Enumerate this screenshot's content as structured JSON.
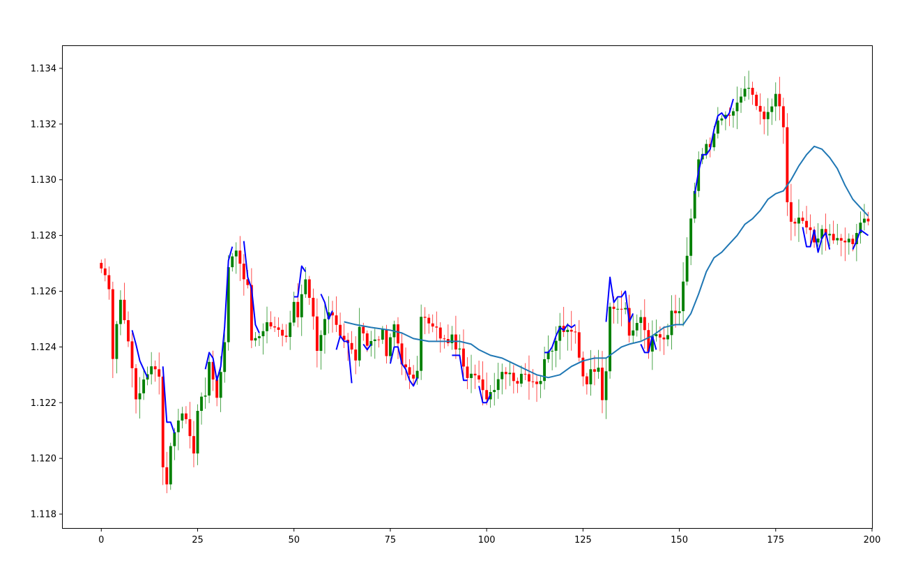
{
  "chart_data": {
    "type": "candlestick",
    "xlim": [
      -10,
      200
    ],
    "ylim": [
      1.1175,
      1.1348
    ],
    "x_ticks": [
      0,
      25,
      50,
      75,
      100,
      125,
      150,
      175,
      200
    ],
    "y_ticks": [
      1.118,
      1.12,
      1.122,
      1.124,
      1.126,
      1.128,
      1.13,
      1.132,
      1.134
    ],
    "x_tick_labels": [
      "0",
      "25",
      "50",
      "75",
      "100",
      "125",
      "150",
      "175",
      "200"
    ],
    "y_tick_labels": [
      "1.118",
      "1.120",
      "1.122",
      "1.124",
      "1.126",
      "1.128",
      "1.130",
      "1.132",
      "1.134"
    ],
    "colors": {
      "up": "#008000",
      "down": "#ff0000",
      "signal": "#0000ff",
      "smooth": "#1f77b4"
    },
    "close_anchors": [
      [
        0,
        1.1267
      ],
      [
        2,
        1.1262
      ],
      [
        3,
        1.1236
      ],
      [
        5,
        1.1258
      ],
      [
        7,
        1.1242
      ],
      [
        9,
        1.1222
      ],
      [
        11,
        1.1227
      ],
      [
        13,
        1.1234
      ],
      [
        15,
        1.123
      ],
      [
        16,
        1.1198
      ],
      [
        17,
        1.119
      ],
      [
        18,
        1.1205
      ],
      [
        20,
        1.1215
      ],
      [
        22,
        1.1215
      ],
      [
        23,
        1.1207
      ],
      [
        24,
        1.1202
      ],
      [
        25,
        1.1218
      ],
      [
        26,
        1.1222
      ],
      [
        27,
        1.1223
      ],
      [
        28,
        1.1234
      ],
      [
        29,
        1.1228
      ],
      [
        30,
        1.1223
      ],
      [
        31,
        1.1232
      ],
      [
        32,
        1.1242
      ],
      [
        33,
        1.127
      ],
      [
        34,
        1.1271
      ],
      [
        35,
        1.1275
      ],
      [
        37,
        1.1264
      ],
      [
        38,
        1.1261
      ],
      [
        39,
        1.1243
      ],
      [
        41,
        1.1244
      ],
      [
        43,
        1.1248
      ],
      [
        46,
        1.1247
      ],
      [
        48,
        1.1243
      ],
      [
        50,
        1.1257
      ],
      [
        51,
        1.125
      ],
      [
        52,
        1.1258
      ],
      [
        53,
        1.1263
      ],
      [
        55,
        1.125
      ],
      [
        56,
        1.1238
      ],
      [
        58,
        1.125
      ],
      [
        60,
        1.1252
      ],
      [
        62,
        1.1245
      ],
      [
        64,
        1.1241
      ],
      [
        66,
        1.1236
      ],
      [
        67,
        1.1246
      ],
      [
        69,
        1.1241
      ],
      [
        71,
        1.1243
      ],
      [
        73,
        1.1245
      ],
      [
        74,
        1.1237
      ],
      [
        76,
        1.1248
      ],
      [
        78,
        1.1235
      ],
      [
        80,
        1.1229
      ],
      [
        82,
        1.123
      ],
      [
        83,
        1.1252
      ],
      [
        85,
        1.1248
      ],
      [
        87,
        1.1246
      ],
      [
        89,
        1.1242
      ],
      [
        91,
        1.1243
      ],
      [
        93,
        1.1238
      ],
      [
        95,
        1.1228
      ],
      [
        97,
        1.1231
      ],
      [
        99,
        1.1226
      ],
      [
        100,
        1.1222
      ],
      [
        102,
        1.1226
      ],
      [
        104,
        1.1232
      ],
      [
        106,
        1.123
      ],
      [
        108,
        1.1228
      ],
      [
        110,
        1.123
      ],
      [
        112,
        1.1228
      ],
      [
        114,
        1.1228
      ],
      [
        115,
        1.1236
      ],
      [
        117,
        1.1238
      ],
      [
        119,
        1.1247
      ],
      [
        121,
        1.1245
      ],
      [
        123,
        1.1245
      ],
      [
        124,
        1.1237
      ],
      [
        125,
        1.123
      ],
      [
        126,
        1.1228
      ],
      [
        127,
        1.1231
      ],
      [
        129,
        1.1234
      ],
      [
        130,
        1.1222
      ],
      [
        131,
        1.1232
      ],
      [
        132,
        1.1253
      ],
      [
        134,
        1.1254
      ],
      [
        136,
        1.1254
      ],
      [
        137,
        1.1243
      ],
      [
        138,
        1.1246
      ],
      [
        140,
        1.1252
      ],
      [
        142,
        1.1238
      ],
      [
        143,
        1.1244
      ],
      [
        145,
        1.1243
      ],
      [
        147,
        1.1243
      ],
      [
        148,
        1.1252
      ],
      [
        150,
        1.1253
      ],
      [
        151,
        1.1263
      ],
      [
        152,
        1.1272
      ],
      [
        153,
        1.1285
      ],
      [
        154,
        1.1296
      ],
      [
        155,
        1.1306
      ],
      [
        156,
        1.1309
      ],
      [
        157,
        1.1312
      ],
      [
        158,
        1.1312
      ],
      [
        159,
        1.1318
      ],
      [
        160,
        1.132
      ],
      [
        161,
        1.1322
      ],
      [
        162,
        1.1323
      ],
      [
        164,
        1.1324
      ],
      [
        165,
        1.1327
      ],
      [
        166,
        1.133
      ],
      [
        167,
        1.1333
      ],
      [
        168,
        1.1332
      ],
      [
        170,
        1.1328
      ],
      [
        171,
        1.1325
      ],
      [
        172,
        1.1322
      ],
      [
        173,
        1.1323
      ],
      [
        174,
        1.1326
      ],
      [
        175,
        1.1332
      ],
      [
        176,
        1.1326
      ],
      [
        177,
        1.132
      ],
      [
        178,
        1.1293
      ],
      [
        179,
        1.1285
      ],
      [
        181,
        1.1285
      ],
      [
        183,
        1.1283
      ],
      [
        185,
        1.1278
      ],
      [
        187,
        1.1282
      ],
      [
        189,
        1.128
      ],
      [
        191,
        1.1278
      ],
      [
        193,
        1.1278
      ],
      [
        195,
        1.1278
      ],
      [
        197,
        1.1285
      ],
      [
        199,
        1.1285
      ]
    ],
    "smooth_line": [
      [
        63,
        1.1249
      ],
      [
        66,
        1.1248
      ],
      [
        70,
        1.1247
      ],
      [
        75,
        1.1246
      ],
      [
        78,
        1.1245
      ],
      [
        81,
        1.1243
      ],
      [
        85,
        1.1242
      ],
      [
        90,
        1.1242
      ],
      [
        93,
        1.1242
      ],
      [
        96,
        1.1241
      ],
      [
        98,
        1.1239
      ],
      [
        101,
        1.1237
      ],
      [
        104,
        1.1236
      ],
      [
        107,
        1.1234
      ],
      [
        110,
        1.1232
      ],
      [
        113,
        1.123
      ],
      [
        116,
        1.1229
      ],
      [
        119,
        1.123
      ],
      [
        122,
        1.1233
      ],
      [
        125,
        1.1235
      ],
      [
        128,
        1.1236
      ],
      [
        131,
        1.1236
      ],
      [
        133,
        1.1238
      ],
      [
        135,
        1.124
      ],
      [
        137,
        1.1241
      ],
      [
        140,
        1.1242
      ],
      [
        143,
        1.1244
      ],
      [
        146,
        1.1247
      ],
      [
        149,
        1.1248
      ],
      [
        151,
        1.1248
      ],
      [
        153,
        1.1252
      ],
      [
        155,
        1.1259
      ],
      [
        157,
        1.1267
      ],
      [
        159,
        1.1272
      ],
      [
        161,
        1.1274
      ],
      [
        163,
        1.1277
      ],
      [
        165,
        1.128
      ],
      [
        167,
        1.1284
      ],
      [
        169,
        1.1286
      ],
      [
        171,
        1.1289
      ],
      [
        173,
        1.1293
      ],
      [
        175,
        1.1295
      ],
      [
        177,
        1.1296
      ],
      [
        179,
        1.13
      ],
      [
        181,
        1.1305
      ],
      [
        183,
        1.1309
      ],
      [
        185,
        1.1312
      ],
      [
        187,
        1.1311
      ],
      [
        189,
        1.1308
      ],
      [
        191,
        1.1304
      ],
      [
        193,
        1.1298
      ],
      [
        195,
        1.1293
      ],
      [
        197,
        1.129
      ],
      [
        199,
        1.1287
      ]
    ],
    "signal_segments": [
      [
        [
          8,
          1.1246
        ],
        [
          9,
          1.1241
        ],
        [
          10,
          1.1235
        ],
        [
          11,
          1.1232
        ],
        [
          12,
          1.1229
        ]
      ],
      [
        [
          16,
          1.1233
        ],
        [
          17,
          1.1213
        ],
        [
          18,
          1.1213
        ],
        [
          19,
          1.1209
        ]
      ],
      [
        [
          27,
          1.1232
        ],
        [
          28,
          1.1238
        ],
        [
          29,
          1.1236
        ],
        [
          30,
          1.1228
        ],
        [
          31,
          1.1233
        ],
        [
          32,
          1.1247
        ],
        [
          33,
          1.1271
        ],
        [
          34,
          1.1276
        ]
      ],
      [
        [
          37,
          1.1278
        ],
        [
          38,
          1.1265
        ],
        [
          39,
          1.1261
        ],
        [
          40,
          1.1248
        ],
        [
          41,
          1.1245
        ]
      ],
      [
        [
          50,
          1.1258
        ],
        [
          51,
          1.1258
        ],
        [
          52,
          1.1269
        ],
        [
          53,
          1.1267
        ]
      ],
      [
        [
          57,
          1.1259
        ],
        [
          58,
          1.1256
        ],
        [
          59,
          1.125
        ],
        [
          60,
          1.1253
        ]
      ],
      [
        [
          61,
          1.1239
        ],
        [
          62,
          1.1244
        ],
        [
          63,
          1.1242
        ],
        [
          64,
          1.1242
        ],
        [
          65,
          1.1227
        ]
      ],
      [
        [
          68,
          1.1241
        ],
        [
          69,
          1.1239
        ],
        [
          70,
          1.1241
        ]
      ],
      [
        [
          75,
          1.1234
        ],
        [
          76,
          1.124
        ],
        [
          77,
          1.124
        ],
        [
          78,
          1.1234
        ],
        [
          79,
          1.1232
        ],
        [
          80,
          1.1228
        ],
        [
          81,
          1.1226
        ],
        [
          82,
          1.1229
        ]
      ],
      [
        [
          91,
          1.1237
        ],
        [
          92,
          1.1237
        ],
        [
          93,
          1.1237
        ],
        [
          94,
          1.1228
        ],
        [
          95,
          1.1228
        ]
      ],
      [
        [
          98,
          1.1226
        ],
        [
          99,
          1.122
        ],
        [
          100,
          1.122
        ],
        [
          101,
          1.1223
        ]
      ],
      [
        [
          115,
          1.1238
        ],
        [
          116,
          1.1238
        ],
        [
          117,
          1.124
        ],
        [
          118,
          1.1244
        ],
        [
          119,
          1.1247
        ],
        [
          120,
          1.1246
        ],
        [
          121,
          1.1248
        ],
        [
          122,
          1.1247
        ],
        [
          123,
          1.1248
        ]
      ],
      [
        [
          131,
          1.1249
        ],
        [
          132,
          1.1265
        ],
        [
          133,
          1.1256
        ],
        [
          134,
          1.1258
        ],
        [
          135,
          1.1258
        ],
        [
          136,
          1.126
        ],
        [
          137,
          1.1249
        ],
        [
          138,
          1.1252
        ]
      ],
      [
        [
          140,
          1.1241
        ],
        [
          141,
          1.1238
        ],
        [
          142,
          1.1238
        ],
        [
          143,
          1.1244
        ],
        [
          144,
          1.1239
        ]
      ],
      [
        [
          154,
          1.1295
        ],
        [
          155,
          1.1303
        ],
        [
          156,
          1.1309
        ],
        [
          157,
          1.1309
        ],
        [
          158,
          1.1311
        ],
        [
          159,
          1.1318
        ],
        [
          160,
          1.1323
        ],
        [
          161,
          1.1324
        ],
        [
          162,
          1.1322
        ],
        [
          163,
          1.1324
        ],
        [
          164,
          1.1329
        ]
      ],
      [
        [
          182,
          1.1283
        ],
        [
          183,
          1.1276
        ],
        [
          184,
          1.1276
        ],
        [
          185,
          1.1282
        ],
        [
          186,
          1.1274
        ],
        [
          187,
          1.1279
        ],
        [
          188,
          1.1281
        ],
        [
          189,
          1.1275
        ]
      ],
      [
        [
          195,
          1.1275
        ],
        [
          196,
          1.1278
        ],
        [
          197,
          1.1282
        ],
        [
          198,
          1.1281
        ],
        [
          199,
          1.128
        ]
      ]
    ]
  }
}
